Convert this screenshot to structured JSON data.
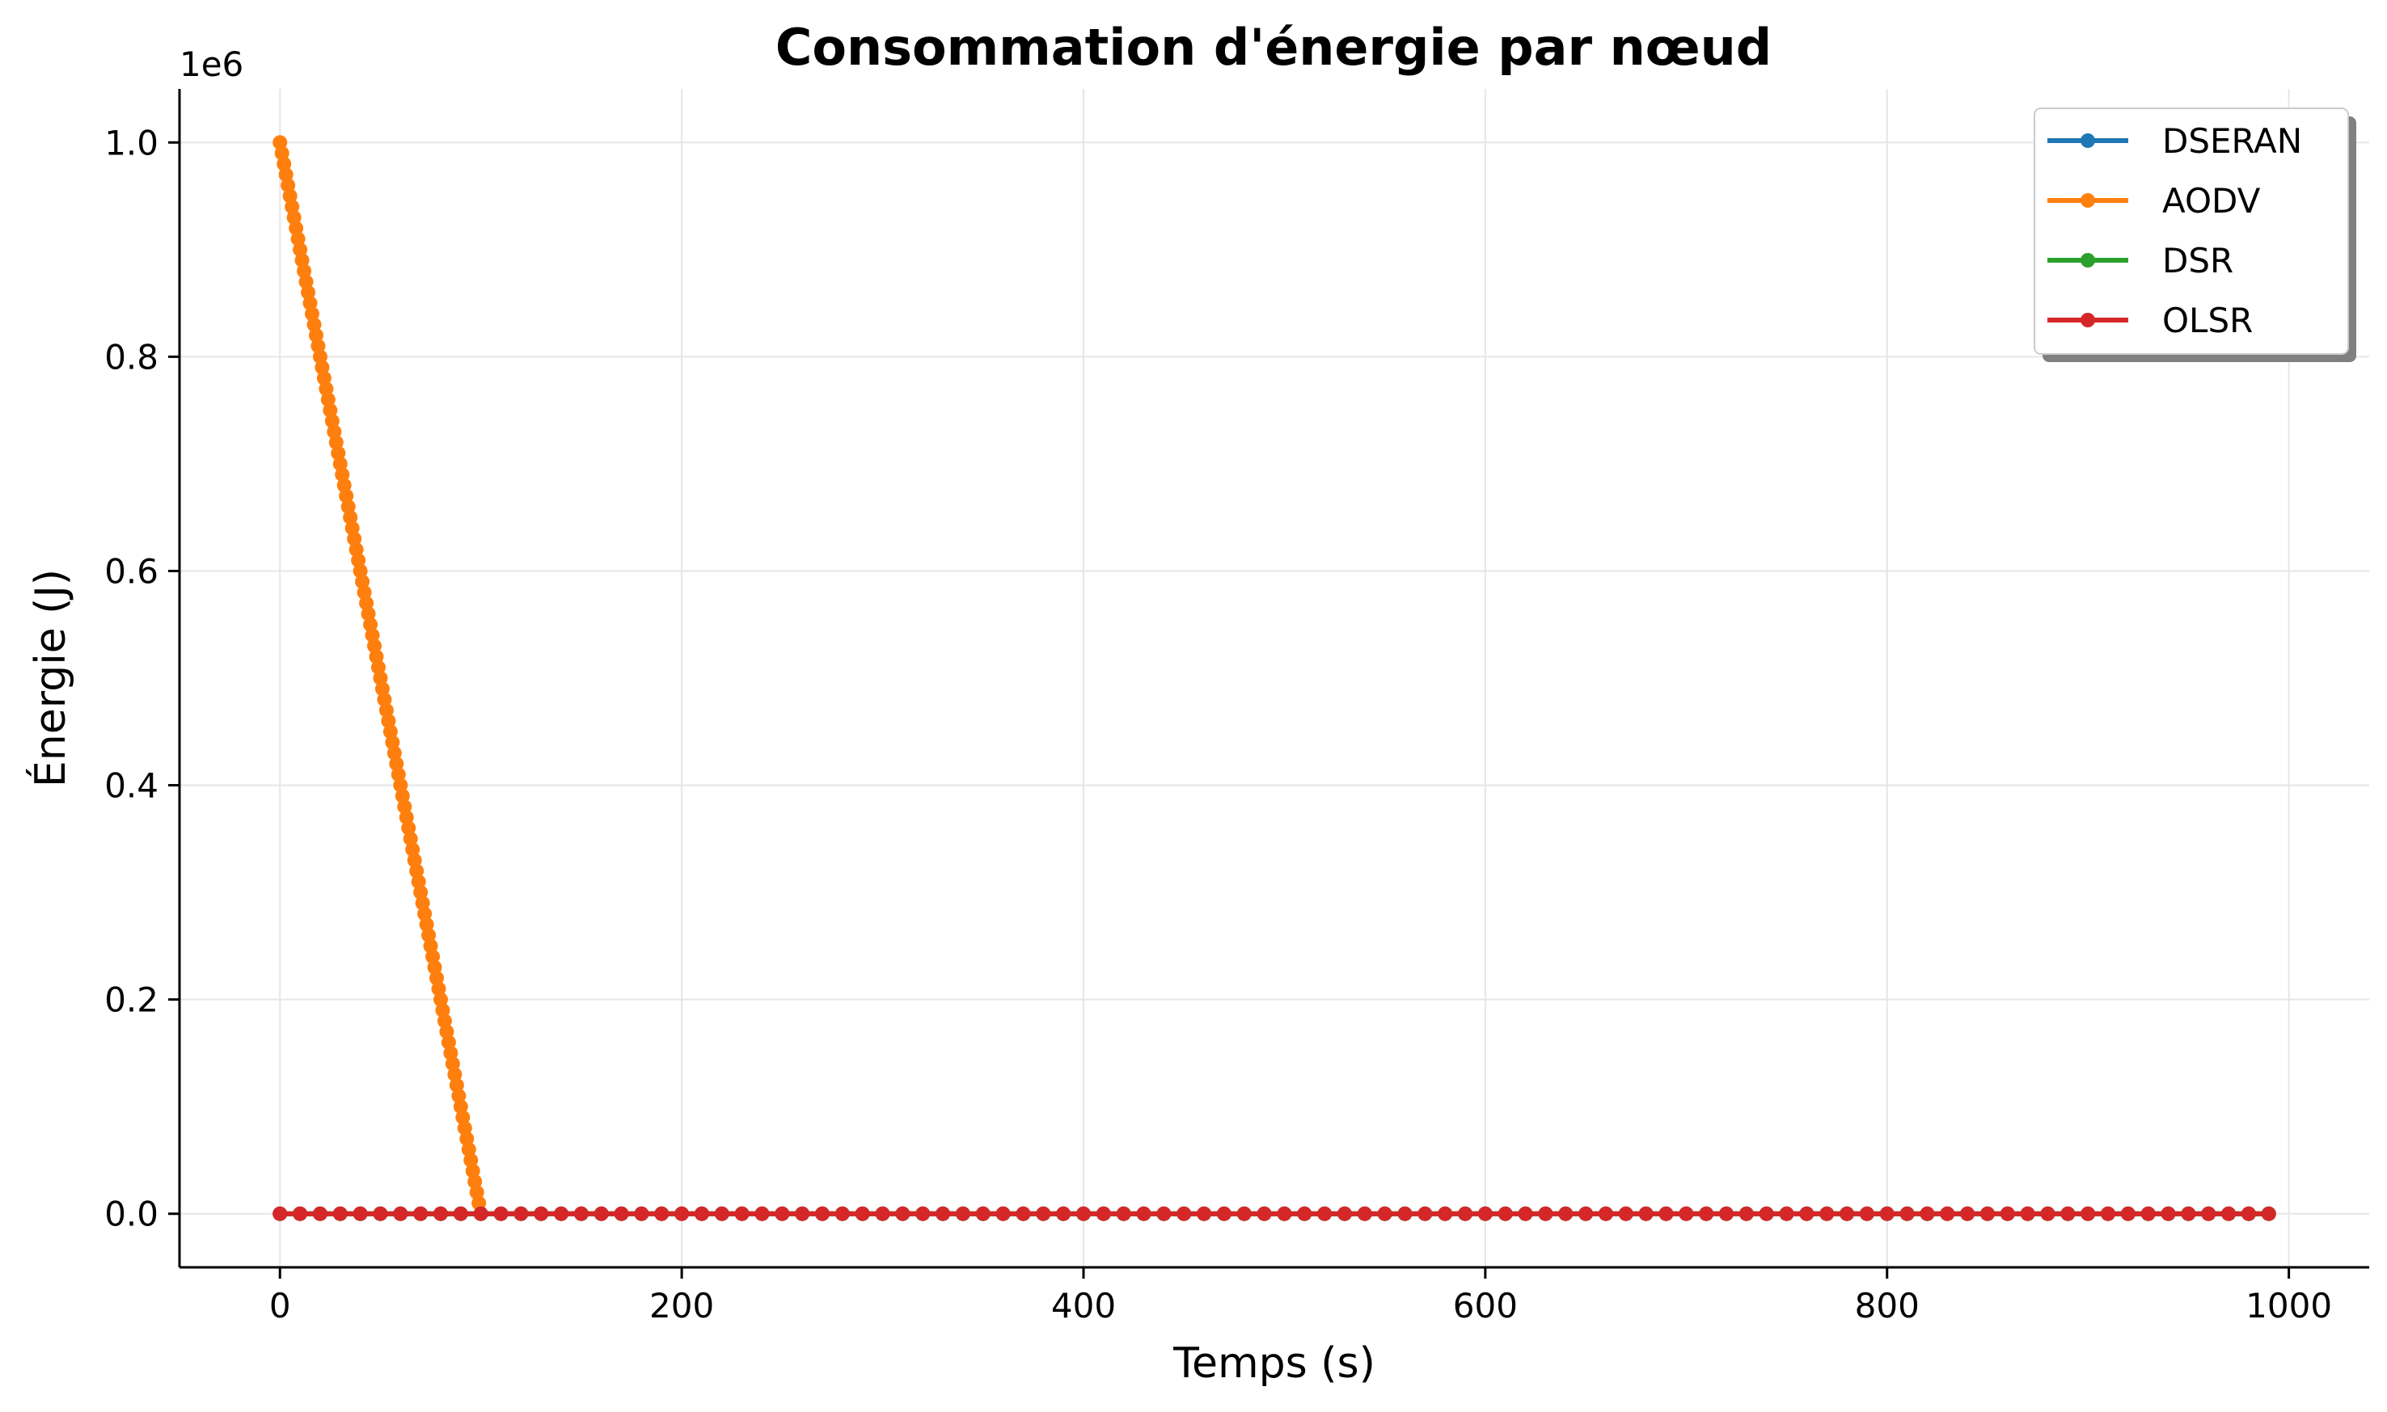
{
  "chart_data": {
    "type": "line",
    "title": "Consommation d'énergie par nœud",
    "xlabel": "Temps (s)",
    "ylabel": "Énergie (J)",
    "y_scale_label": "1e6",
    "xlim": [
      -50,
      1040
    ],
    "ylim": [
      -0.05,
      1.05
    ],
    "y_multiplier": 1000000,
    "x_ticks": [
      0,
      200,
      400,
      600,
      800,
      1000
    ],
    "x_tick_labels": [
      "0",
      "200",
      "400",
      "600",
      "800",
      "1000"
    ],
    "y_ticks": [
      0.0,
      0.2,
      0.4,
      0.6,
      0.8,
      1.0
    ],
    "y_tick_labels": [
      "0.0",
      "0.2",
      "0.4",
      "0.6",
      "0.8",
      "1.0"
    ],
    "grid": true,
    "legend_position": "top-right",
    "series": [
      {
        "name": "DSERAN",
        "color": "#1f77b4",
        "segments": [
          {
            "x_start": 0,
            "x_end": 990,
            "x_step": 10,
            "y_start": 0,
            "y_end": 0
          }
        ]
      },
      {
        "name": "AODV",
        "color": "#ff7f0e",
        "segments": [
          {
            "x_start": 0,
            "x_end": 100,
            "x_step": 1,
            "y_start": 1.0,
            "y_end": 0.0
          }
        ]
      },
      {
        "name": "DSR",
        "color": "#2ca02c",
        "segments": [
          {
            "x_start": 0,
            "x_end": 990,
            "x_step": 10,
            "y_start": 0,
            "y_end": 0
          }
        ]
      },
      {
        "name": "OLSR",
        "color": "#d62728",
        "segments": [
          {
            "x_start": 0,
            "x_end": 990,
            "x_step": 10,
            "y_start": 0,
            "y_end": 0
          }
        ]
      }
    ]
  }
}
